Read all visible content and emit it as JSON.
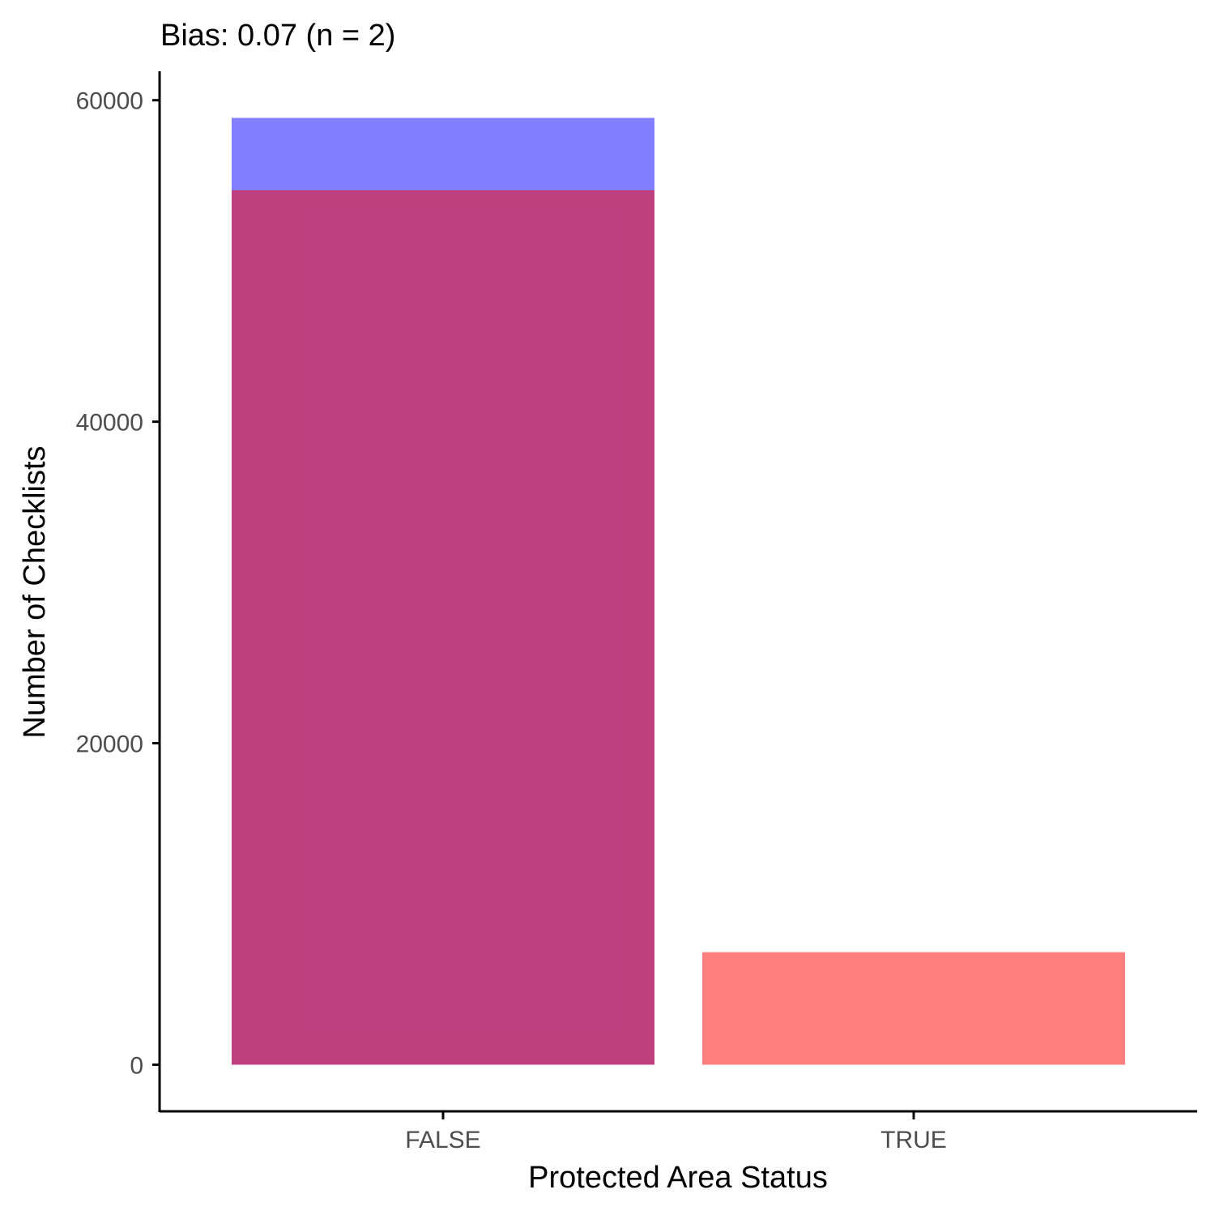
{
  "chart_data": {
    "type": "bar",
    "title": "Bias: 0.07 (n = 2)",
    "xlabel": "Protected Area Status",
    "ylabel": "Number of Checklists",
    "categories": [
      "FALSE",
      "TRUE"
    ],
    "series": [
      {
        "color": "#0000ff",
        "opacity": 0.5,
        "values": [
          58900,
          0
        ]
      },
      {
        "color": "#ff0000",
        "opacity": 0.5,
        "values": [
          54400,
          7000
        ]
      }
    ],
    "overlay_color": "#c0417d",
    "ylim": [
      -2900,
      61800
    ],
    "y_ticks": [
      0,
      20000,
      40000,
      60000
    ],
    "y_tick_labels": [
      "0",
      "20000",
      "40000",
      "60000"
    ],
    "grid": false,
    "legend": "none"
  }
}
